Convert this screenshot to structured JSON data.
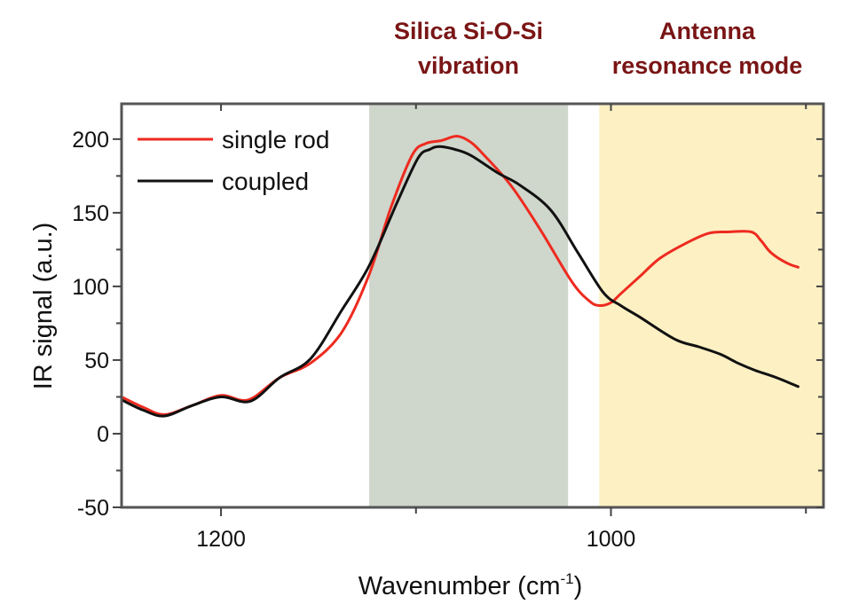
{
  "chart_data": {
    "type": "line",
    "title": "",
    "xlabel": "Wavenumber (cm",
    "xlabel_superscript": "-1",
    "xlabel_suffix": ")",
    "ylabel": "IR signal (a.u.)",
    "xlim": [
      1251,
      891
    ],
    "ylim": [
      -50,
      224
    ],
    "x_reversed": true,
    "x_major_ticks": [
      1200,
      1000
    ],
    "x_minor_ticks": [
      1100,
      900
    ],
    "y_major_ticks": [
      -50,
      0,
      50,
      100,
      150,
      200
    ],
    "y_minor_ticks": [
      -25,
      25,
      75,
      125,
      175
    ],
    "grid": false,
    "legend_position": "top-left",
    "shaded_regions": [
      {
        "name": "silica",
        "x_range": [
          1124,
          1022
        ],
        "color": "#cfd6cb",
        "label_lines": [
          "Silica Si-O-Si",
          "vibration"
        ]
      },
      {
        "name": "antenna",
        "x_range": [
          1006,
          891
        ],
        "color": "#fdf0c3",
        "label_lines": [
          "Antenna",
          "resonance mode"
        ]
      }
    ],
    "series": [
      {
        "name": "single rod",
        "color": "#ee2a1f",
        "x": [
          1251,
          1240,
          1229,
          1215,
          1200,
          1186,
          1170,
          1154,
          1138,
          1124,
          1113,
          1102,
          1095,
          1087,
          1079,
          1072,
          1065,
          1051,
          1036,
          1020,
          1011,
          1006,
          1000,
          995,
          985,
          975,
          962,
          950,
          940,
          928,
          923,
          918,
          910,
          904
        ],
        "values": [
          25,
          18,
          13,
          19,
          26,
          23,
          38,
          48,
          69,
          108,
          153,
          189,
          197,
          199,
          202,
          198,
          189,
          168,
          138,
          103,
          90,
          87,
          89,
          95,
          107,
          119,
          129,
          136,
          137,
          137,
          131,
          123,
          116,
          113
        ]
      },
      {
        "name": "coupled",
        "color": "#111111",
        "x": [
          1251,
          1240,
          1229,
          1215,
          1200,
          1185,
          1170,
          1154,
          1138,
          1124,
          1110,
          1099,
          1093,
          1088,
          1080,
          1072,
          1058,
          1047,
          1031,
          1017,
          1004,
          995,
          985,
          967,
          955,
          944,
          935,
          926,
          915,
          904
        ],
        "values": [
          23,
          16,
          12,
          19,
          25,
          22,
          38,
          51,
          84,
          114,
          156,
          187,
          193,
          195,
          193,
          189,
          177,
          169,
          152,
          123,
          96,
          87,
          79,
          64,
          59,
          54,
          48,
          43,
          38,
          32
        ]
      }
    ]
  }
}
